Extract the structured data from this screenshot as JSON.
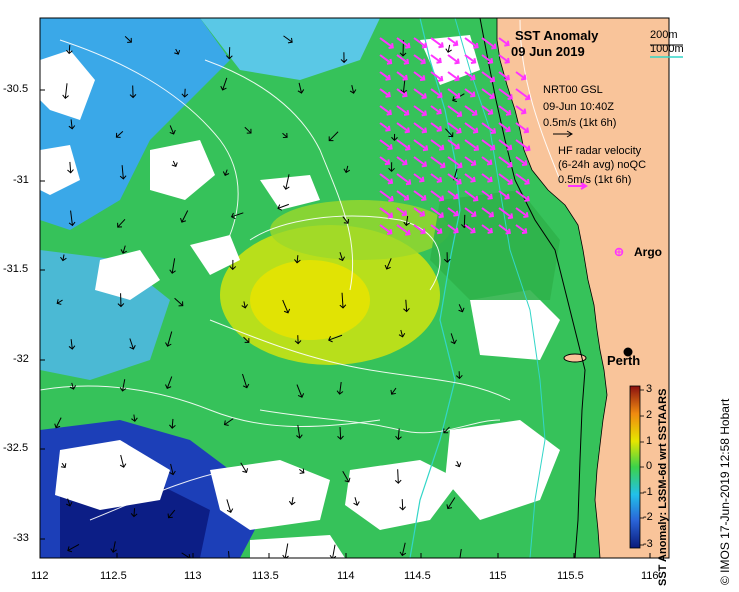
{
  "map": {
    "title_line1": "SST Anomaly",
    "title_line2": "09 Jun 2019",
    "legend_200m": "200m",
    "legend_1000m": "1000m",
    "gsl_line1": "NRT00 GSL",
    "gsl_line2": "09-Jun 10:40Z",
    "gsl_line3": "0.5m/s (1kt 6h)",
    "hf_line1": "HF radar velocity",
    "hf_line2": "(6-24h avg) noQC",
    "hf_line3": "0.5m/s (1kt 6h)",
    "argo_label": "Argo",
    "perth_label": "Perth",
    "credit": "© IMOS 17-Jun-2019 12:58 Hobart",
    "colorbar_label": "SST Anomaly: L3SM-6d wrt SSTAARS",
    "colorbar_ticks": [
      "3",
      "2",
      "1",
      "0",
      "-1",
      "-2",
      "-3"
    ],
    "lat_ticks": [
      "-30.5",
      "-31",
      "-31.5",
      "-32",
      "-32.5",
      "-33"
    ],
    "lon_ticks": [
      "112",
      "112.5",
      "113",
      "113.5",
      "114",
      "114.5",
      "115",
      "115.5",
      "116"
    ],
    "colors": {
      "land": "#f9c49a",
      "hf_arrow": "#ff33ff",
      "contour_200m": "#000000",
      "contour_1000m": "#33d6c8",
      "stream": "#ffffff"
    }
  }
}
